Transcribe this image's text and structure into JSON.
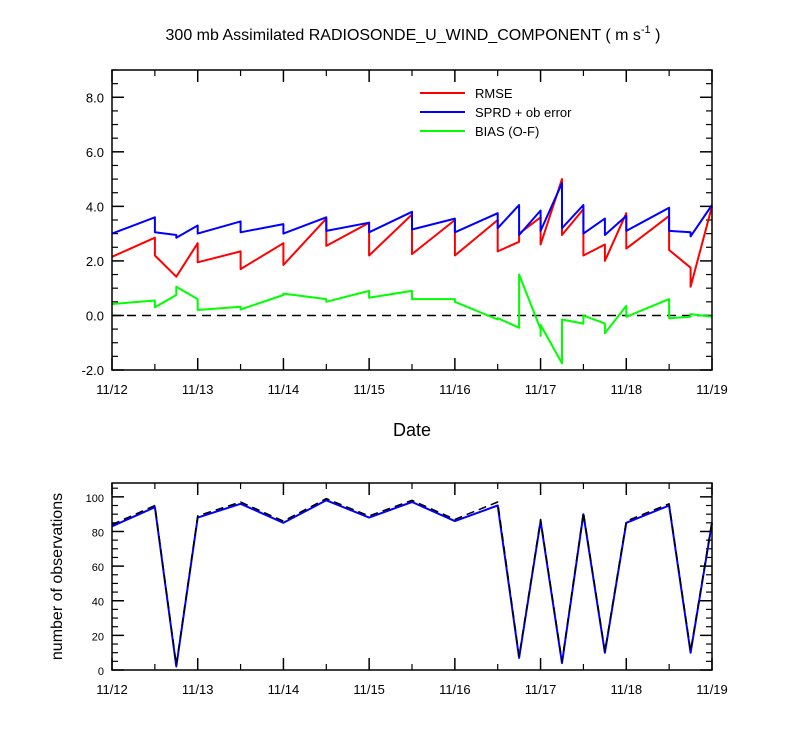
{
  "title": {
    "main": "300 mb Assimilated RADIOSONDE_U_WIND_COMPONENT ( m s",
    "sup": "-1",
    "tail": " )"
  },
  "chart_data": [
    {
      "type": "line",
      "xlabel": "Date",
      "ylabel": "",
      "xlim": [
        0,
        7
      ],
      "ylim": [
        -2.0,
        9.0
      ],
      "x_ticks": [
        0,
        1,
        2,
        3,
        4,
        5,
        6,
        7
      ],
      "x_tick_labels": [
        "11/12",
        "11/13",
        "11/14",
        "11/15",
        "11/16",
        "11/17",
        "11/18",
        "11/19"
      ],
      "y_ticks": [
        -2.0,
        0.0,
        2.0,
        4.0,
        6.0,
        8.0
      ],
      "y_tick_labels": [
        "-2.0",
        "0.0",
        "2.0",
        "4.0",
        "6.0",
        "8.0"
      ],
      "legend_position": "top-right",
      "reference_line": {
        "y": 0.0,
        "style": "dashed",
        "color": "#000000"
      },
      "x_unit_note": "x values in days since 11/12 00Z",
      "series": [
        {
          "name": "RMSE",
          "color": "#ff0000",
          "points": [
            [
              0,
              2.15
            ],
            [
              0.5,
              2.85
            ],
            [
              0.5,
              2.2
            ],
            [
              0.75,
              1.42
            ],
            [
              1.0,
              2.65
            ],
            [
              1.0,
              1.95
            ],
            [
              1.5,
              2.35
            ],
            [
              1.5,
              1.7
            ],
            [
              2.0,
              2.65
            ],
            [
              2.0,
              1.85
            ],
            [
              2.5,
              3.55
            ],
            [
              2.5,
              2.55
            ],
            [
              3.0,
              3.4
            ],
            [
              3.0,
              2.2
            ],
            [
              3.5,
              3.7
            ],
            [
              3.5,
              2.25
            ],
            [
              4.0,
              3.5
            ],
            [
              4.0,
              2.2
            ],
            [
              4.5,
              3.5
            ],
            [
              4.5,
              2.35
            ],
            [
              4.75,
              2.7
            ],
            [
              4.75,
              3.0
            ],
            [
              5.0,
              3.6
            ],
            [
              5.0,
              2.6
            ],
            [
              5.25,
              5.0
            ],
            [
              5.25,
              2.95
            ],
            [
              5.5,
              3.9
            ],
            [
              5.5,
              2.2
            ],
            [
              5.75,
              2.6
            ],
            [
              5.75,
              2.0
            ],
            [
              6.0,
              3.75
            ],
            [
              6.0,
              2.45
            ],
            [
              6.5,
              3.65
            ],
            [
              6.5,
              2.4
            ],
            [
              6.75,
              1.75
            ],
            [
              6.75,
              1.05
            ],
            [
              7.0,
              4.0
            ]
          ]
        },
        {
          "name": "SPRD + ob error",
          "color": "#0000ff",
          "points": [
            [
              0,
              3.0
            ],
            [
              0.5,
              3.6
            ],
            [
              0.5,
              3.05
            ],
            [
              0.75,
              2.95
            ],
            [
              0.75,
              2.85
            ],
            [
              1.0,
              3.3
            ],
            [
              1.0,
              3.0
            ],
            [
              1.5,
              3.45
            ],
            [
              1.5,
              3.05
            ],
            [
              2.0,
              3.35
            ],
            [
              2.0,
              3.0
            ],
            [
              2.5,
              3.6
            ],
            [
              2.5,
              3.1
            ],
            [
              3.0,
              3.4
            ],
            [
              3.0,
              3.05
            ],
            [
              3.5,
              3.8
            ],
            [
              3.5,
              3.15
            ],
            [
              4.0,
              3.55
            ],
            [
              4.0,
              3.05
            ],
            [
              4.5,
              3.75
            ],
            [
              4.5,
              3.2
            ],
            [
              4.75,
              4.05
            ],
            [
              4.75,
              2.95
            ],
            [
              5.0,
              3.85
            ],
            [
              5.0,
              3.1
            ],
            [
              5.25,
              4.85
            ],
            [
              5.25,
              3.2
            ],
            [
              5.5,
              4.05
            ],
            [
              5.5,
              3.0
            ],
            [
              5.75,
              3.55
            ],
            [
              5.75,
              2.95
            ],
            [
              6.0,
              3.65
            ],
            [
              6.0,
              3.1
            ],
            [
              6.5,
              3.95
            ],
            [
              6.5,
              3.1
            ],
            [
              6.75,
              3.05
            ],
            [
              6.75,
              2.9
            ],
            [
              7.0,
              4.05
            ]
          ]
        },
        {
          "name": "BIAS (O-F)",
          "color": "#00ff00",
          "points": [
            [
              0,
              0.42
            ],
            [
              0.5,
              0.55
            ],
            [
              0.5,
              0.3
            ],
            [
              0.75,
              0.75
            ],
            [
              0.75,
              1.05
            ],
            [
              1.0,
              0.6
            ],
            [
              1.0,
              0.2
            ],
            [
              1.5,
              0.32
            ],
            [
              1.5,
              0.22
            ],
            [
              2.0,
              0.75
            ],
            [
              2.0,
              0.8
            ],
            [
              2.5,
              0.6
            ],
            [
              2.5,
              0.5
            ],
            [
              3.0,
              0.9
            ],
            [
              3.0,
              0.65
            ],
            [
              3.5,
              0.9
            ],
            [
              3.5,
              0.6
            ],
            [
              4.0,
              0.6
            ],
            [
              4.0,
              0.5
            ],
            [
              4.5,
              -0.15
            ],
            [
              4.5,
              -0.1
            ],
            [
              4.75,
              -0.45
            ],
            [
              4.75,
              1.5
            ],
            [
              5.0,
              -0.5
            ],
            [
              5.0,
              -0.75
            ],
            [
              5.0,
              -0.35
            ],
            [
              5.25,
              -1.75
            ],
            [
              5.25,
              -0.15
            ],
            [
              5.5,
              -0.3
            ],
            [
              5.5,
              0.0
            ],
            [
              5.75,
              -0.3
            ],
            [
              5.75,
              -0.65
            ],
            [
              6.0,
              0.35
            ],
            [
              6.0,
              -0.05
            ],
            [
              6.5,
              0.6
            ],
            [
              6.5,
              -0.1
            ],
            [
              6.75,
              -0.05
            ],
            [
              6.75,
              0.05
            ],
            [
              7.0,
              -0.05
            ]
          ]
        }
      ]
    },
    {
      "type": "line",
      "xlabel": "",
      "ylabel": "number of observations",
      "xlim": [
        0,
        7
      ],
      "ylim": [
        0,
        108
      ],
      "x_ticks": [
        0,
        1,
        2,
        3,
        4,
        5,
        6,
        7
      ],
      "x_tick_labels": [
        "11/12",
        "11/13",
        "11/14",
        "11/15",
        "11/16",
        "11/17",
        "11/18",
        "11/19"
      ],
      "y_ticks": [
        0,
        20,
        40,
        60,
        80,
        100
      ],
      "y_tick_labels": [
        "0",
        "20",
        "40",
        "60",
        "80",
        "100"
      ],
      "series": [
        {
          "name": "",
          "color": "#0000ff",
          "style": "solid",
          "points": [
            [
              0,
              83
            ],
            [
              0.5,
              94
            ],
            [
              0.75,
              2
            ],
            [
              1.0,
              88
            ],
            [
              1.5,
              96
            ],
            [
              2.0,
              85
            ],
            [
              2.5,
              98
            ],
            [
              3.0,
              88
            ],
            [
              3.5,
              97
            ],
            [
              4.0,
              86
            ],
            [
              4.5,
              95
            ],
            [
              4.75,
              7
            ],
            [
              5.0,
              86
            ],
            [
              5.25,
              4
            ],
            [
              5.5,
              90
            ],
            [
              5.75,
              10
            ],
            [
              6.0,
              85
            ],
            [
              6.5,
              95
            ],
            [
              6.75,
              10
            ],
            [
              7.0,
              85
            ]
          ]
        },
        {
          "name": "",
          "color": "#000000",
          "style": "dashed",
          "points": [
            [
              0,
              84
            ],
            [
              0.5,
              95
            ],
            [
              0.75,
              3
            ],
            [
              1.0,
              89
            ],
            [
              1.5,
              97
            ],
            [
              2.0,
              86
            ],
            [
              2.5,
              99
            ],
            [
              3.0,
              89
            ],
            [
              3.5,
              98
            ],
            [
              4.0,
              87
            ],
            [
              4.5,
              97
            ],
            [
              4.75,
              8
            ],
            [
              5.0,
              87
            ],
            [
              5.25,
              5
            ],
            [
              5.5,
              91
            ],
            [
              5.75,
              11
            ],
            [
              6.0,
              86
            ],
            [
              6.5,
              96
            ],
            [
              6.75,
              11
            ],
            [
              7.0,
              86
            ]
          ]
        }
      ]
    }
  ]
}
